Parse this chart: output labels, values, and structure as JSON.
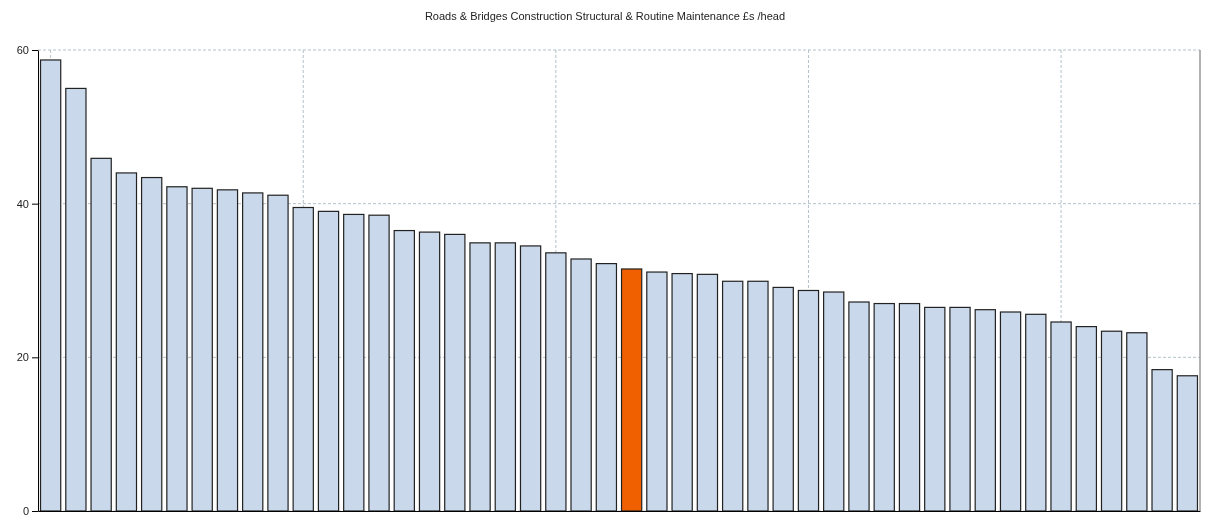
{
  "chart_data": {
    "type": "bar",
    "title": "Roads & Bridges Construction Structural & Routine Maintenance £s /head",
    "categories": [
      null,
      null,
      null,
      null,
      null,
      null,
      null,
      null,
      null,
      null,
      null,
      null,
      null,
      null,
      null,
      null,
      null,
      null,
      null,
      null,
      null,
      null,
      null,
      null,
      null,
      null,
      null,
      null,
      null,
      null,
      null,
      null,
      null,
      null,
      null,
      null,
      null,
      null,
      null,
      null,
      null,
      null,
      null,
      null,
      null,
      null
    ],
    "values": [
      58.7,
      55.0,
      45.9,
      44.0,
      43.4,
      42.2,
      42.0,
      41.8,
      41.4,
      41.1,
      39.5,
      39.0,
      38.6,
      38.5,
      36.5,
      36.3,
      36.0,
      34.9,
      34.9,
      34.5,
      33.6,
      32.8,
      32.2,
      31.5,
      31.1,
      30.9,
      30.8,
      29.9,
      29.9,
      29.1,
      28.7,
      28.5,
      27.2,
      27.0,
      27.0,
      26.5,
      26.5,
      26.2,
      25.9,
      25.6,
      24.6,
      24.0,
      23.4,
      23.2,
      18.4,
      17.6
    ],
    "colors": [
      "#c9d8ea",
      "#c9d8ea",
      "#c9d8ea",
      "#c9d8ea",
      "#c9d8ea",
      "#c9d8ea",
      "#c9d8ea",
      "#c9d8ea",
      "#c9d8ea",
      "#c9d8ea",
      "#c9d8ea",
      "#c9d8ea",
      "#c9d8ea",
      "#c9d8ea",
      "#c9d8ea",
      "#c9d8ea",
      "#c9d8ea",
      "#c9d8ea",
      "#c9d8ea",
      "#c9d8ea",
      "#c9d8ea",
      "#c9d8ea",
      "#c9d8ea",
      "#f06000",
      "#c9d8ea",
      "#c9d8ea",
      "#c9d8ea",
      "#c9d8ea",
      "#c9d8ea",
      "#c9d8ea",
      "#c9d8ea",
      "#c9d8ea",
      "#c9d8ea",
      "#c9d8ea",
      "#c9d8ea",
      "#c9d8ea",
      "#c9d8ea",
      "#c9d8ea",
      "#c9d8ea",
      "#c9d8ea",
      "#c9d8ea",
      "#c9d8ea",
      "#c9d8ea",
      "#c9d8ea",
      "#c9d8ea",
      "#c9d8ea"
    ],
    "ylim": [
      0,
      60
    ],
    "yticks": [
      0,
      20,
      40,
      60
    ],
    "grid": true
  }
}
